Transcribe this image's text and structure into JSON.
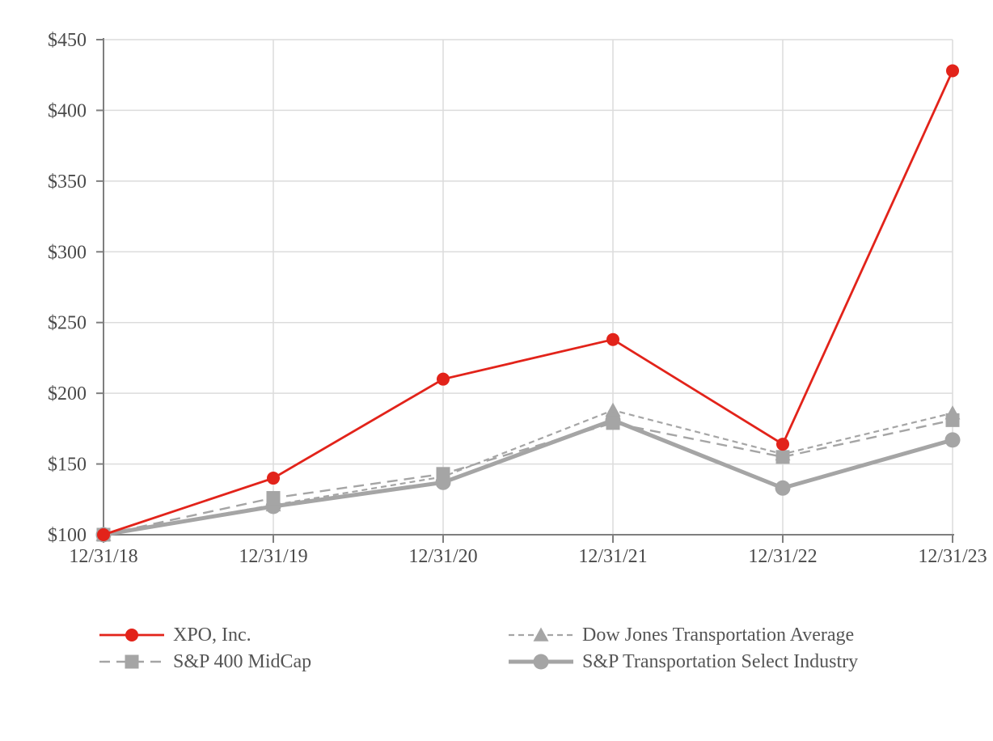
{
  "chart_data": {
    "type": "line",
    "title": "",
    "categories": [
      "12/31/18",
      "12/31/19",
      "12/31/20",
      "12/31/21",
      "12/31/22",
      "12/31/23"
    ],
    "series": [
      {
        "name": "XPO, Inc.",
        "color": "#E2231A",
        "marker": "circle",
        "marker_size": 8,
        "line_style": "solid",
        "z": 4,
        "values": [
          100,
          140,
          210,
          238,
          164,
          428
        ]
      },
      {
        "name": "Dow Jones Transportation Average",
        "color": "#A5A5A5",
        "marker": "triangle",
        "marker_size": 9.5,
        "line_style": "short-dash",
        "z": 1,
        "values": [
          100,
          121,
          141,
          188,
          157,
          186
        ]
      },
      {
        "name": "S&P 400 MidCap",
        "color": "#A5A5A5",
        "marker": "square",
        "marker_size": 8.5,
        "line_style": "long-dash",
        "z": 3,
        "values": [
          100,
          126,
          143,
          179,
          155,
          181
        ]
      },
      {
        "name": "S&P Transportation Select Industry",
        "color": "#A5A5A5",
        "marker": "circle",
        "marker_size": 9.5,
        "line_style": "solid-thick",
        "z": 2,
        "values": [
          100,
          120,
          137,
          181,
          133,
          167
        ]
      }
    ],
    "ylim": [
      100,
      450
    ],
    "y_tick_step": 50,
    "y_tick_prefix": "$",
    "xlabel": "",
    "ylabel": "",
    "grid": true,
    "legend_position": "bottom",
    "colors": {
      "axis": "#7F7F7F",
      "gridline": "#DCDCDC",
      "tick_label": "#4A4A4A",
      "legend_text": "#555555",
      "background": "#FFFFFF"
    }
  }
}
